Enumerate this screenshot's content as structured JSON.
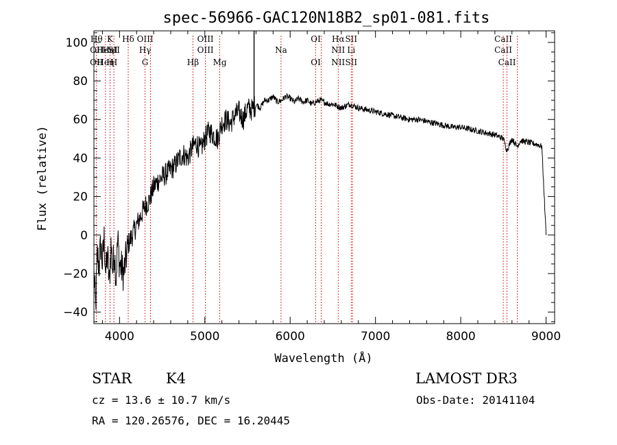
{
  "chart_data": {
    "type": "line",
    "title": "spec-56966-GAC120N18B2_sp01-081.fits",
    "xlabel": "Wavelength (Å)",
    "ylabel": "Flux (relative)",
    "xlim": [
      3700,
      9100
    ],
    "ylim": [
      -46,
      106
    ],
    "x_ticks": [
      4000,
      5000,
      6000,
      7000,
      8000,
      9000
    ],
    "y_ticks": [
      -40,
      -20,
      0,
      20,
      40,
      60,
      80,
      100
    ],
    "series": [
      {
        "name": "flux",
        "x": [
          3700,
          3720,
          3740,
          3760,
          3780,
          3800,
          3820,
          3840,
          3860,
          3880,
          3900,
          3920,
          3940,
          3960,
          3980,
          4000,
          4050,
          4100,
          4150,
          4200,
          4250,
          4300,
          4350,
          4400,
          4450,
          4500,
          4550,
          4600,
          4650,
          4700,
          4750,
          4800,
          4850,
          4900,
          4950,
          5000,
          5050,
          5100,
          5150,
          5200,
          5250,
          5300,
          5350,
          5400,
          5450,
          5500,
          5550,
          5600,
          5650,
          5700,
          5750,
          5800,
          5850,
          5900,
          5950,
          6000,
          6050,
          6100,
          6150,
          6200,
          6250,
          6300,
          6350,
          6400,
          6450,
          6500,
          6550,
          6600,
          6650,
          6700,
          6800,
          6900,
          7000,
          7100,
          7200,
          7300,
          7400,
          7500,
          7600,
          7700,
          7800,
          7900,
          8000,
          8100,
          8200,
          8300,
          8400,
          8500,
          8540,
          8600,
          8660,
          8700,
          8800,
          8900,
          8950,
          9000
        ],
        "y": [
          -20,
          -38,
          -10,
          -16,
          -5,
          -15,
          -2,
          -20,
          -10,
          -26,
          -5,
          -18,
          -8,
          -22,
          -2,
          -15,
          -20,
          -5,
          0,
          5,
          10,
          15,
          18,
          25,
          28,
          30,
          32,
          34,
          36,
          40,
          42,
          40,
          45,
          48,
          44,
          50,
          54,
          52,
          50,
          58,
          60,
          58,
          62,
          64,
          60,
          66,
          65,
          68,
          66,
          70,
          70,
          72,
          69,
          70,
          72,
          71,
          69,
          71,
          69,
          70,
          68,
          69,
          70,
          69,
          68,
          68,
          67,
          66,
          67,
          68,
          66,
          65,
          64,
          63,
          62,
          61,
          60,
          60,
          59,
          58,
          57,
          56,
          56,
          55,
          54,
          53,
          52,
          50,
          44,
          50,
          46,
          49,
          48,
          47,
          46,
          0
        ]
      }
    ],
    "emission_lines": [
      {
        "rows": [
          "Hθ",
          "OII",
          "OII"
        ],
        "x": 3730
      },
      {
        "rows": [
          "",
          "Heη",
          "Heη"
        ],
        "x": 3835
      },
      {
        "rows": [
          "K",
          "HeI",
          "H"
        ],
        "x": 3889
      },
      {
        "rows": [
          "",
          "SII",
          "H"
        ],
        "x": 3934
      },
      {
        "rows": [
          "Hδ",
          "",
          ""
        ],
        "x": 4102
      },
      {
        "rows": [
          "OIII",
          "Hγ",
          "G"
        ],
        "x": 4300
      },
      {
        "rows": [
          "",
          "",
          ""
        ],
        "x": 4363
      },
      {
        "rows": [
          "",
          "",
          "Hβ"
        ],
        "x": 4861
      },
      {
        "rows": [
          "OIII",
          "OIII",
          ""
        ],
        "x": 5007
      },
      {
        "rows": [
          "",
          "",
          "Mg"
        ],
        "x": 5175
      },
      {
        "rows": [
          "",
          "Na",
          ""
        ],
        "x": 5893
      },
      {
        "rows": [
          "OI",
          "",
          "OI"
        ],
        "x": 6300
      },
      {
        "rows": [
          "",
          "",
          ""
        ],
        "x": 6364
      },
      {
        "rows": [
          "Hα",
          "NII",
          "NII"
        ],
        "x": 6563
      },
      {
        "rows": [
          "SII",
          "Li",
          "SII"
        ],
        "x": 6716
      },
      {
        "rows": [
          "",
          "",
          ""
        ],
        "x": 6731
      },
      {
        "rows": [
          "CaII",
          "CaII",
          ""
        ],
        "x": 8498
      },
      {
        "rows": [
          "",
          "",
          "CaII"
        ],
        "x": 8542
      },
      {
        "rows": [
          "",
          "",
          ""
        ],
        "x": 8662
      }
    ]
  },
  "info": {
    "object_type": "STAR",
    "subclass": "K4",
    "survey": "LAMOST DR3",
    "cz": "cz = 13.6 ± 10.7 km/s",
    "obs_date": "Obs-Date: 20141104",
    "coords": "RA = 120.26576, DEC =  16.20445"
  },
  "colors": {
    "spectrum": "#000000",
    "line_marker": "#cc0000",
    "axis": "#000000"
  }
}
